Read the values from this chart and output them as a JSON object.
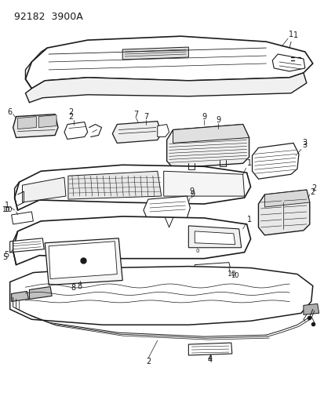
{
  "title": "92182  3900A",
  "bg_color": "#ffffff",
  "line_color": "#1a1a1a",
  "fig_width": 4.14,
  "fig_height": 5.33,
  "dpi": 100
}
